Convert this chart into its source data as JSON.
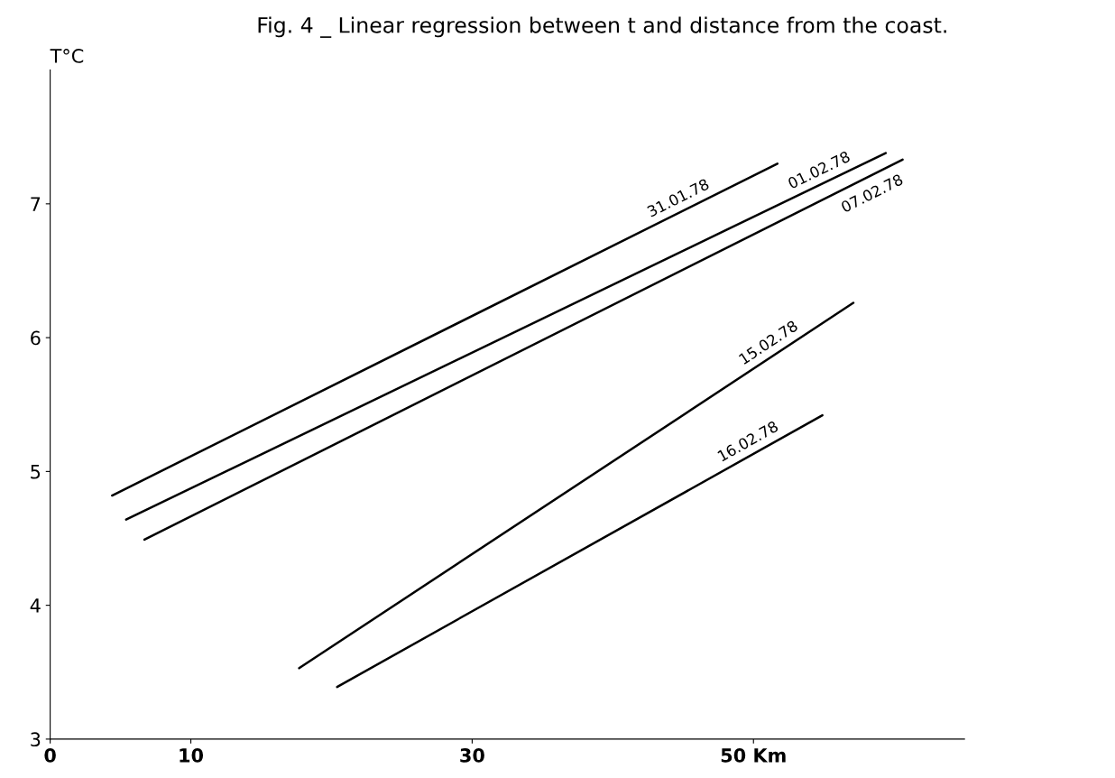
{
  "chart_data": {
    "type": "line",
    "title": "Fig. 4 _ Linear regression between t and distance from the coast.",
    "ylabel": "T°C",
    "xlim": [
      0,
      65
    ],
    "xticks": [
      0,
      10,
      30,
      {
        "value": 50,
        "label": "50 Km"
      }
    ],
    "ylim": [
      3,
      8
    ],
    "yticks": [
      3,
      4,
      5,
      6,
      7
    ],
    "grid": false,
    "legend": false,
    "marker": "none",
    "line_style": "solid",
    "series": [
      {
        "name": "31.01.78",
        "color": "#000000",
        "x": [
          4.4,
          51.7
        ],
        "values": [
          4.82,
          7.3
        ]
      },
      {
        "name": "01.02.78",
        "color": "#000000",
        "x": [
          5.4,
          59.4
        ],
        "values": [
          4.64,
          7.38
        ]
      },
      {
        "name": "07.02.78",
        "color": "#000000",
        "x": [
          6.7,
          60.6
        ],
        "values": [
          4.49,
          7.33
        ]
      },
      {
        "name": "15.02.78",
        "color": "#000000",
        "x": [
          17.7,
          57.1
        ],
        "values": [
          3.53,
          6.26
        ]
      },
      {
        "name": "16.02.78",
        "color": "#000000",
        "x": [
          20.4,
          54.9
        ],
        "values": [
          3.39,
          5.42
        ]
      }
    ]
  }
}
